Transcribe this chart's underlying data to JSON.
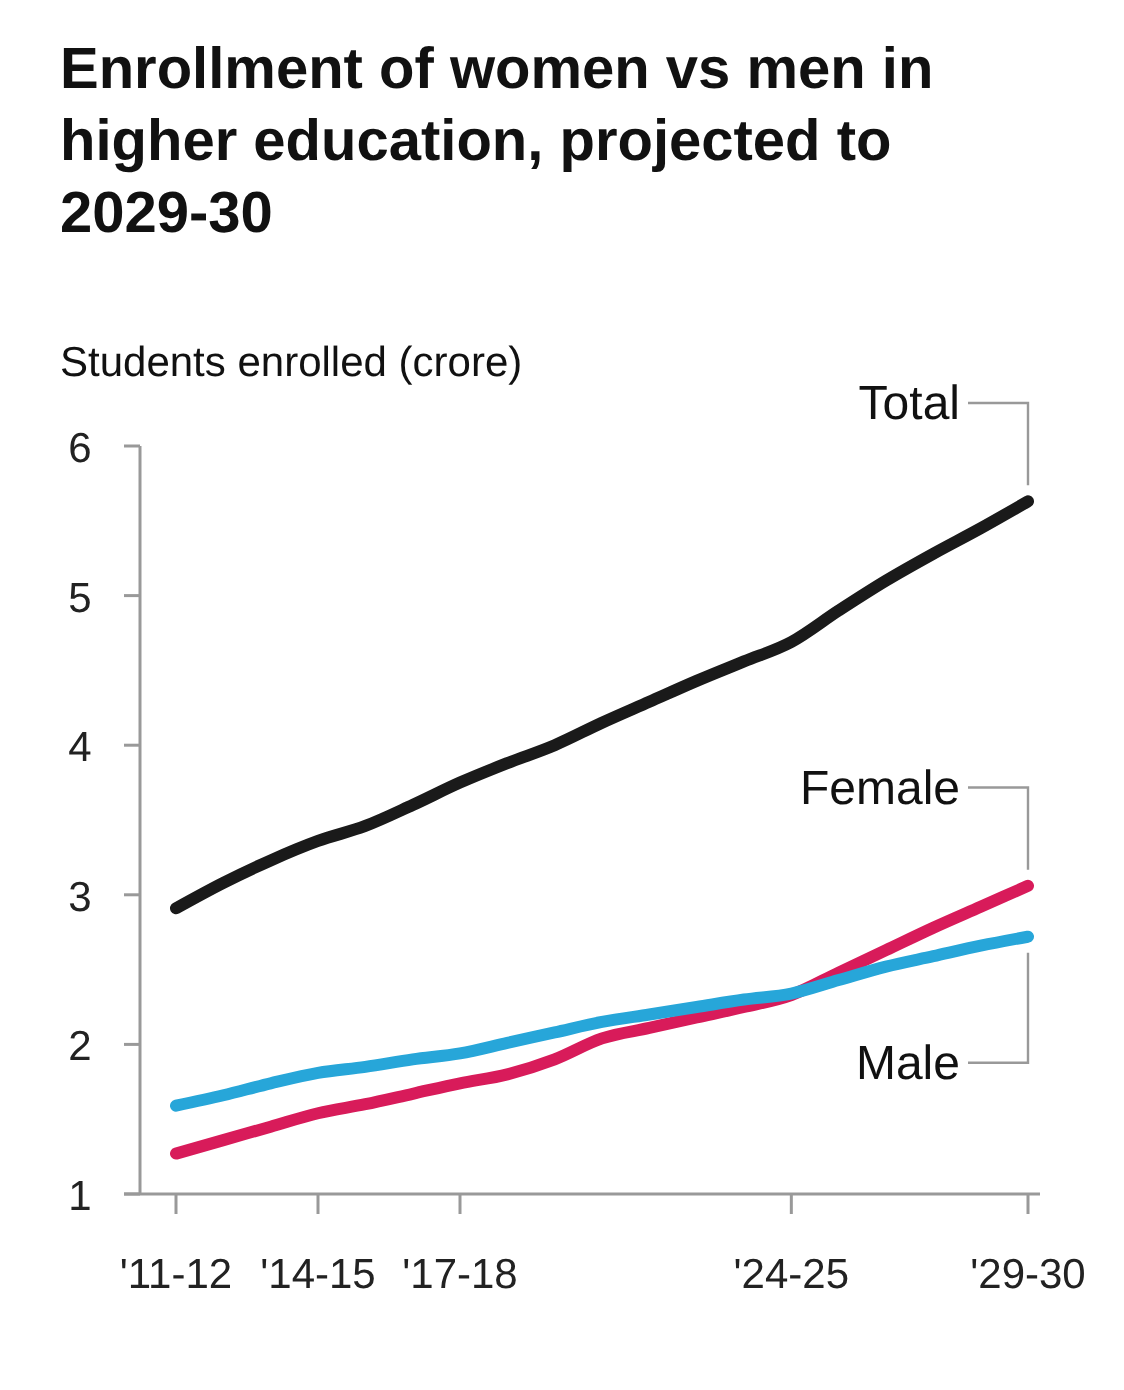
{
  "chart_data": {
    "type": "line",
    "title": "Enrollment of women vs men in higher education, projected to 2029-30",
    "ylabel": "Students enrolled (crore)",
    "categories": [
      "'11-12",
      null,
      null,
      "'14-15",
      null,
      null,
      "'17-18",
      null,
      null,
      null,
      null,
      null,
      null,
      "'24-25",
      null,
      null,
      null,
      null,
      "'29-30"
    ],
    "ylim": [
      1,
      6
    ],
    "yticks": [
      1,
      2,
      3,
      4,
      5,
      6
    ],
    "grid": false,
    "legend": false,
    "marker": "none",
    "line_style": "solid",
    "series": [
      {
        "name": "Total",
        "color": "#1a1a1a",
        "values": [
          2.91,
          3.08,
          3.23,
          3.36,
          3.46,
          3.6,
          3.75,
          3.88,
          4.0,
          4.15,
          4.29,
          4.43,
          4.56,
          4.69,
          4.9,
          5.1,
          5.28,
          5.45,
          5.63
        ]
      },
      {
        "name": "Female",
        "color": "#d81b5a",
        "values": [
          1.27,
          1.36,
          1.45,
          1.54,
          1.6,
          1.67,
          1.74,
          1.8,
          1.9,
          2.04,
          2.11,
          2.18,
          2.25,
          2.33,
          2.48,
          2.63,
          2.78,
          2.92,
          3.06
        ]
      },
      {
        "name": "Male",
        "color": "#27a6d9",
        "values": [
          1.59,
          1.66,
          1.74,
          1.81,
          1.85,
          1.9,
          1.94,
          2.01,
          2.08,
          2.15,
          2.2,
          2.25,
          2.3,
          2.34,
          2.43,
          2.52,
          2.59,
          2.66,
          2.72
        ]
      }
    ]
  }
}
